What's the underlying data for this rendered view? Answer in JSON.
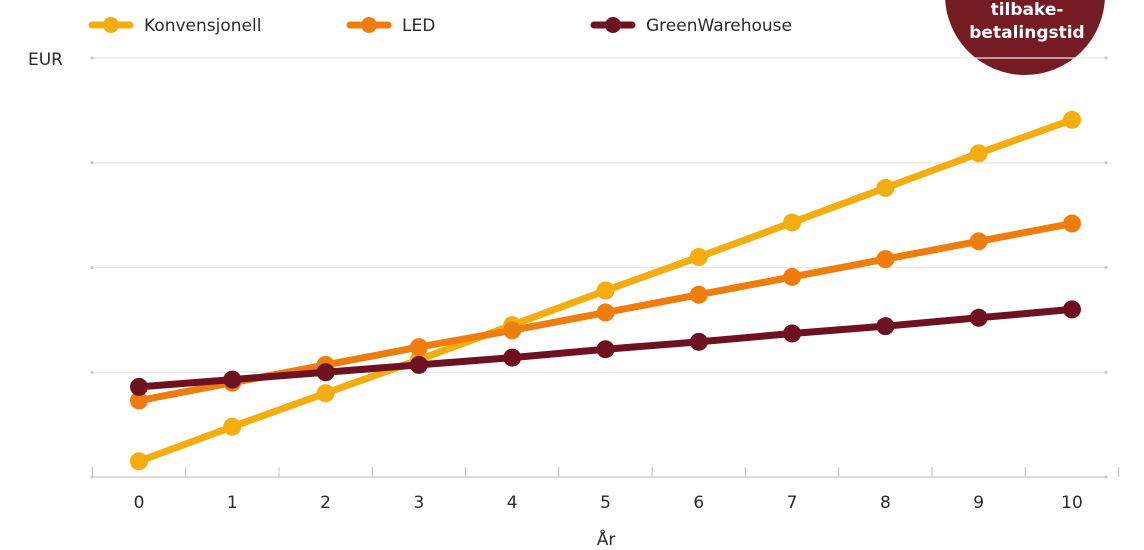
{
  "chart_data": {
    "type": "line",
    "ylabel": "EUR",
    "xlabel": "År",
    "x": [
      0,
      1,
      2,
      3,
      4,
      5,
      6,
      7,
      8,
      9,
      10
    ],
    "y_ticks": 5,
    "y_labels_shown": false,
    "grid": true,
    "legend": "top-left",
    "series": [
      {
        "name": "Konvensjonell",
        "color": "#f5ac0e",
        "values": [
          0.15,
          0.48,
          0.8,
          1.12,
          1.45,
          1.78,
          2.1,
          2.43,
          2.76,
          3.09,
          3.41
        ]
      },
      {
        "name": "LED",
        "color": "#ee7d0d",
        "values": [
          0.73,
          0.9,
          1.07,
          1.24,
          1.4,
          1.57,
          1.74,
          1.91,
          2.08,
          2.25,
          2.42
        ]
      },
      {
        "name": "GreenWarehouse",
        "color": "#6e1221",
        "values": [
          0.86,
          0.93,
          1.0,
          1.07,
          1.14,
          1.22,
          1.29,
          1.37,
          1.44,
          1.52,
          1.6
        ]
      }
    ]
  },
  "badge": {
    "lines": [
      "tilbake-",
      "betalingstid"
    ],
    "color": "#751b24"
  }
}
